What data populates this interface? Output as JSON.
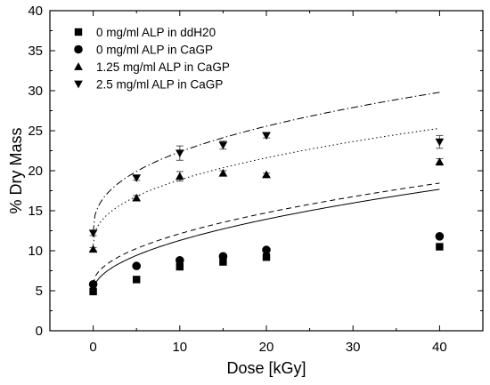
{
  "chart_data": {
    "type": "scatter",
    "xlabel": "Dose [kGy]",
    "ylabel": "% Dry Mass",
    "xlim": [
      -5,
      45
    ],
    "ylim": [
      0,
      40
    ],
    "xticks": [
      0,
      10,
      20,
      30,
      40
    ],
    "yticks": [
      0,
      5,
      10,
      15,
      20,
      25,
      30,
      35,
      40
    ],
    "grid": false,
    "legend_position": "top-left",
    "series": [
      {
        "name": "0 mg/ml ALP in ddH20",
        "marker": "square",
        "x": [
          0,
          5,
          10,
          15,
          20,
          40
        ],
        "y": [
          4.9,
          6.4,
          8.0,
          8.6,
          9.2,
          10.5
        ],
        "err": [
          0.1,
          0.1,
          0.2,
          0.1,
          0.1,
          0.1
        ],
        "fit": {
          "style": "solid",
          "a": 4.9,
          "b": 2.02,
          "p": 0.5
        }
      },
      {
        "name": "0 mg/ml ALP in CaGP",
        "marker": "circle",
        "x": [
          0,
          5,
          10,
          15,
          20,
          40
        ],
        "y": [
          5.8,
          8.1,
          8.8,
          9.3,
          10.1,
          11.8
        ],
        "err": [
          0.1,
          0.1,
          0.1,
          0.1,
          0.1,
          0.1
        ],
        "fit": {
          "style": "dashed",
          "a": 5.8,
          "b": 2.0,
          "p": 0.5
        }
      },
      {
        "name": "1.25 mg/ml ALP in CaGP",
        "marker": "triangle-up",
        "x": [
          0,
          5,
          10,
          15,
          20,
          40
        ],
        "y": [
          10.2,
          16.6,
          19.3,
          19.7,
          19.5,
          21.1
        ],
        "err": [
          0.2,
          0.3,
          0.6,
          0.3,
          0.2,
          0.4
        ],
        "fit": {
          "style": "dotted",
          "a": 10.7,
          "b": 3.1,
          "p": 0.42
        }
      },
      {
        "name": "2.5 mg/ml ALP in CaGP",
        "marker": "triangle-down",
        "x": [
          0,
          5,
          10,
          15,
          20,
          40
        ],
        "y": [
          12.2,
          19.1,
          22.2,
          23.2,
          24.4,
          23.6
        ],
        "err": [
          0.3,
          0.3,
          0.9,
          0.5,
          0.3,
          0.8
        ],
        "fit": {
          "style": "dashdot",
          "a": 12.3,
          "b": 4.0,
          "p": 0.4
        }
      }
    ]
  }
}
